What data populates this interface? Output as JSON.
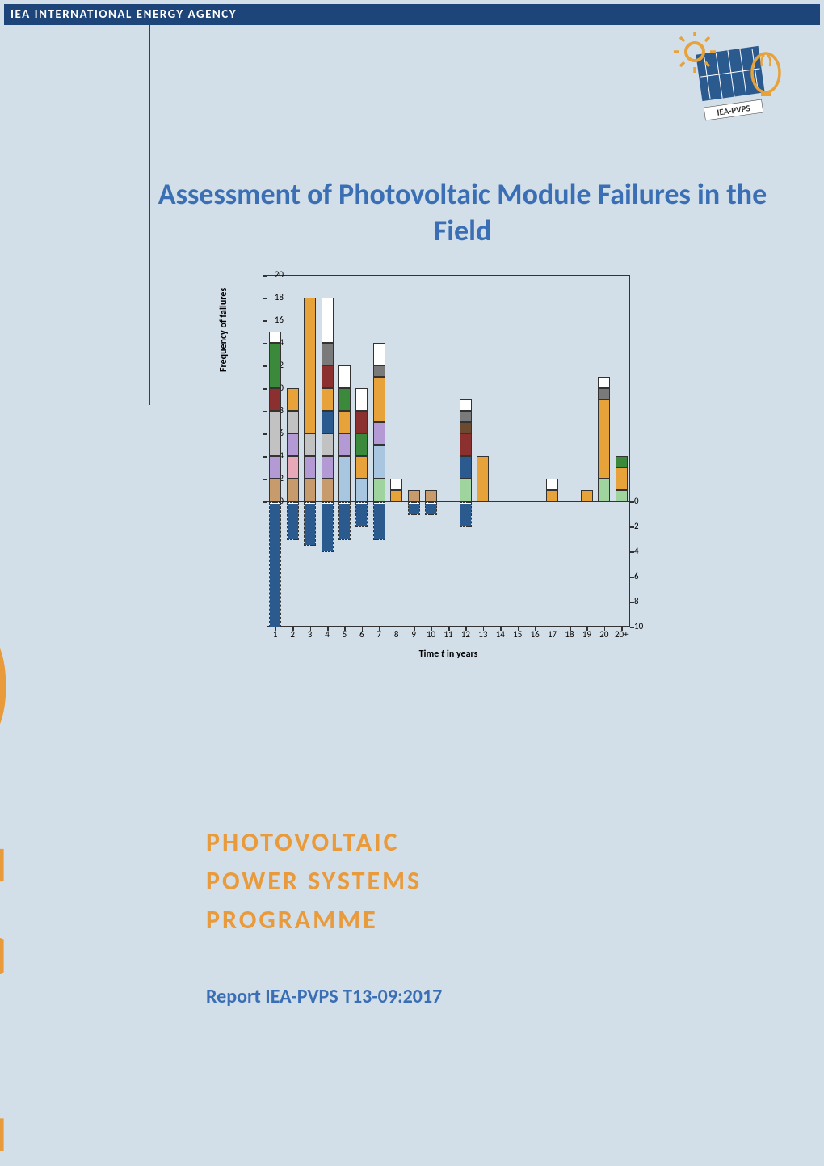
{
  "header": "IEA INTERNATIONAL ENERGY AGENCY",
  "logo_label": "IEA-PVPS",
  "title": "Assessment of Photovoltaic Module Failures in the Field",
  "programme_line1": "PHOTOVOLTAIC",
  "programme_line2": "POWER SYSTEMS",
  "programme_line3": "PROGRAMME",
  "report_id": "Report IEA-PVPS T13-09:2017",
  "pvps": "PVPS",
  "colors": {
    "page_bg": "#d3dfe8",
    "header_bg": "#1d457a",
    "accent_orange": "#e99a3a",
    "title_blue": "#3b6fb5",
    "axis": "#333333"
  },
  "chart": {
    "type": "stacked-bar-dual",
    "ylabel": "Frequency of failures",
    "xlabel": "Time t in years",
    "y_top_max": 20,
    "y_top_step": 2,
    "y_bot_max": 10,
    "y_bot_step": 2,
    "x_categories": [
      "1",
      "2",
      "3",
      "4",
      "5",
      "6",
      "7",
      "8",
      "9",
      "10",
      "11",
      "12",
      "13",
      "14",
      "15",
      "16",
      "17",
      "18",
      "19",
      "20",
      "20+"
    ],
    "segment_colors": {
      "tan": "#c79b6b",
      "lilac": "#b39ad4",
      "grey": "#c2c2c2",
      "darkred": "#8b2f2f",
      "green": "#3b8a3b",
      "orange": "#e7a23a",
      "white": "#ffffff",
      "navy": "#2b5a8f",
      "ltblue": "#a9c6e0",
      "dkgrey": "#7a7a7a",
      "brown": "#6b4a2f",
      "ltgreen": "#9fd49f",
      "pink": "#e7a9b8"
    },
    "top_bars": [
      {
        "x": 1,
        "segs": [
          [
            "tan",
            2
          ],
          [
            "lilac",
            2
          ],
          [
            "grey",
            4
          ],
          [
            "darkred",
            2
          ],
          [
            "green",
            4
          ],
          [
            "white",
            1
          ]
        ]
      },
      {
        "x": 2,
        "segs": [
          [
            "tan",
            2
          ],
          [
            "pink",
            2
          ],
          [
            "lilac",
            2
          ],
          [
            "grey",
            2
          ],
          [
            "orange",
            2
          ]
        ]
      },
      {
        "x": 3,
        "segs": [
          [
            "tan",
            2
          ],
          [
            "lilac",
            2
          ],
          [
            "grey",
            2
          ],
          [
            "orange",
            12
          ]
        ]
      },
      {
        "x": 4,
        "segs": [
          [
            "tan",
            2
          ],
          [
            "lilac",
            2
          ],
          [
            "grey",
            2
          ],
          [
            "navy",
            2
          ],
          [
            "orange",
            2
          ],
          [
            "darkred",
            2
          ],
          [
            "dkgrey",
            2
          ],
          [
            "white",
            4
          ]
        ]
      },
      {
        "x": 5,
        "segs": [
          [
            "ltblue",
            4
          ],
          [
            "lilac",
            2
          ],
          [
            "orange",
            2
          ],
          [
            "green",
            2
          ],
          [
            "white",
            2
          ]
        ]
      },
      {
        "x": 6,
        "segs": [
          [
            "ltblue",
            2
          ],
          [
            "orange",
            2
          ],
          [
            "green",
            2
          ],
          [
            "darkred",
            2
          ],
          [
            "white",
            2
          ]
        ]
      },
      {
        "x": 7,
        "segs": [
          [
            "ltgreen",
            2
          ],
          [
            "ltblue",
            3
          ],
          [
            "lilac",
            2
          ],
          [
            "orange",
            4
          ],
          [
            "dkgrey",
            1
          ],
          [
            "white",
            2
          ]
        ]
      },
      {
        "x": 8,
        "segs": [
          [
            "orange",
            1
          ],
          [
            "white",
            1
          ]
        ]
      },
      {
        "x": 9,
        "segs": [
          [
            "tan",
            1
          ]
        ]
      },
      {
        "x": 10,
        "segs": [
          [
            "tan",
            1
          ]
        ]
      },
      {
        "x": 12,
        "segs": [
          [
            "ltgreen",
            2
          ],
          [
            "navy",
            2
          ],
          [
            "darkred",
            2
          ],
          [
            "brown",
            1
          ],
          [
            "dkgrey",
            1
          ],
          [
            "white",
            1
          ]
        ]
      },
      {
        "x": 13,
        "segs": [
          [
            "orange",
            4
          ]
        ]
      },
      {
        "x": 17,
        "segs": [
          [
            "orange",
            1
          ],
          [
            "white",
            1
          ]
        ]
      },
      {
        "x": 19,
        "segs": [
          [
            "orange",
            1
          ]
        ]
      },
      {
        "x": 20,
        "segs": [
          [
            "ltgreen",
            2
          ],
          [
            "orange",
            7
          ],
          [
            "dkgrey",
            1
          ],
          [
            "white",
            1
          ]
        ]
      },
      {
        "x": 21,
        "segs": [
          [
            "ltgreen",
            1
          ],
          [
            "orange",
            2
          ],
          [
            "green",
            1
          ]
        ]
      }
    ],
    "bot_bars": [
      {
        "x": 1,
        "h": 10
      },
      {
        "x": 2,
        "h": 3
      },
      {
        "x": 3,
        "h": 3.5
      },
      {
        "x": 4,
        "h": 4
      },
      {
        "x": 5,
        "h": 3
      },
      {
        "x": 6,
        "h": 2
      },
      {
        "x": 7,
        "h": 3
      },
      {
        "x": 9,
        "h": 1
      },
      {
        "x": 10,
        "h": 1
      },
      {
        "x": 12,
        "h": 2
      }
    ]
  }
}
